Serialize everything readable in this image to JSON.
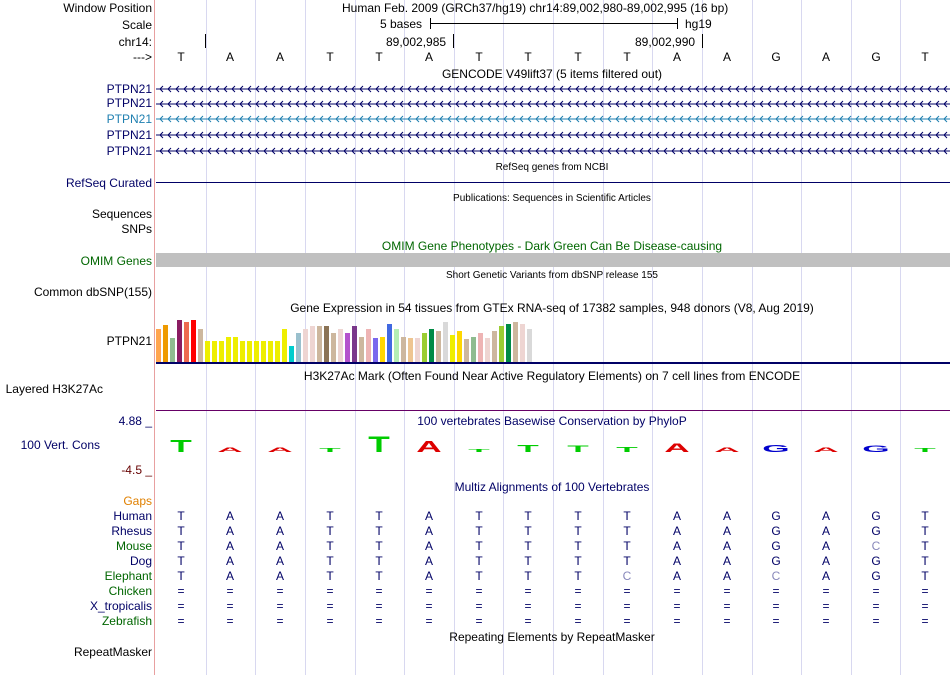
{
  "labels": {
    "window_position": "Window Position",
    "scale": "Scale",
    "chrom": "chr14:",
    "strand": "--->",
    "gencode_genes": [
      "PTPN21",
      "PTPN21",
      "PTPN21",
      "PTPN21",
      "PTPN21"
    ],
    "refseq": "RefSeq Curated",
    "sequences": "Sequences",
    "snps": "SNPs",
    "omim": "OMIM Genes",
    "dbsnp": "Common dbSNP(155)",
    "gtex": "PTPN21",
    "h3k27ac": "Layered H3K27Ac",
    "cons_max": "4.88 _",
    "cons": "100 Vert. Cons",
    "cons_min": "-4.5 _",
    "gaps": "Gaps",
    "species": [
      "Human",
      "Rhesus",
      "Mouse",
      "Dog",
      "Elephant",
      "Chicken",
      "X_tropicalis",
      "Zebrafish"
    ],
    "repeatmasker": "RepeatMasker"
  },
  "header": {
    "position": "Human Feb. 2009 (GRCh37/hg19)   chr14:89,002,980-89,002,995 (16 bp)",
    "scale_text": "5 bases",
    "assembly": "hg19",
    "coord1": "89,002,985",
    "coord2": "89,002,990"
  },
  "sequence": [
    "T",
    "A",
    "A",
    "T",
    "T",
    "A",
    "T",
    "T",
    "T",
    "T",
    "A",
    "A",
    "G",
    "A",
    "G",
    "T"
  ],
  "tracks": {
    "gencode": "GENCODE V49lift37 (5 items filtered out)",
    "refseq": "RefSeq genes from NCBI",
    "publications": "Publications: Sequences in Scientific Articles",
    "omim": "OMIM Gene Phenotypes - Dark Green Can Be Disease-causing",
    "dbsnp": "Short Genetic Variants from dbSNP release 155",
    "gtex": "Gene Expression in 54 tissues from GTEx RNA-seq of 17382 samples, 948 donors (V8, Aug 2019)",
    "h3k27ac": "H3K27Ac Mark (Often Found Near Active Regulatory Elements) on 7 cell lines from ENCODE",
    "phylop": "100 vertebrates Basewise Conservation by PhyloP",
    "multiz": "Multiz Alignments of 100 Vertebrates",
    "repeatmasker": "Repeating Elements by RepeatMasker"
  },
  "alignments": [
    [
      "T",
      "A",
      "A",
      "T",
      "T",
      "A",
      "T",
      "T",
      "T",
      "T",
      "A",
      "A",
      "G",
      "A",
      "G",
      "T"
    ],
    [
      "T",
      "A",
      "A",
      "T",
      "T",
      "A",
      "T",
      "T",
      "T",
      "T",
      "A",
      "A",
      "G",
      "A",
      "G",
      "T"
    ],
    [
      "T",
      "A",
      "A",
      "T",
      "T",
      "A",
      "T",
      "T",
      "T",
      "T",
      "A",
      "A",
      "G",
      "A",
      "C",
      "T"
    ],
    [
      "T",
      "A",
      "A",
      "T",
      "T",
      "A",
      "T",
      "T",
      "T",
      "T",
      "A",
      "A",
      "G",
      "A",
      "G",
      "T"
    ],
    [
      "T",
      "A",
      "A",
      "T",
      "T",
      "A",
      "T",
      "T",
      "T",
      "C",
      "A",
      "A",
      "C",
      "A",
      "G",
      "T"
    ],
    [
      "=",
      "=",
      "=",
      "=",
      "=",
      "=",
      "=",
      "=",
      "=",
      "=",
      "=",
      "=",
      "=",
      "=",
      "=",
      "="
    ],
    [
      "=",
      "=",
      "=",
      "=",
      "=",
      "=",
      "=",
      "=",
      "=",
      "=",
      "=",
      "=",
      "=",
      "=",
      "=",
      "="
    ],
    [
      "=",
      "=",
      "=",
      "=",
      "=",
      "=",
      "=",
      "=",
      "=",
      "=",
      "=",
      "=",
      "=",
      "=",
      "=",
      "="
    ]
  ],
  "gtex_values": [
    0.72,
    0.8,
    0.52,
    0.92,
    0.88,
    0.92,
    0.72,
    0.45,
    0.45,
    0.45,
    0.55,
    0.55,
    0.45,
    0.45,
    0.45,
    0.45,
    0.45,
    0.45,
    0.72,
    0.35,
    0.62,
    0.72,
    0.78,
    0.78,
    0.78,
    0.62,
    0.72,
    0.62,
    0.78,
    0.55,
    0.72,
    0.52,
    0.55,
    0.82,
    0.72,
    0.55,
    0.52,
    0.52,
    0.62,
    0.72,
    0.68,
    0.88,
    0.58,
    0.68,
    0.5,
    0.55,
    0.62,
    0.52,
    0.68,
    0.78,
    0.82,
    0.88,
    0.82,
    0.72
  ],
  "gtex_colors": [
    "#FFA54F",
    "#EE9A00",
    "#8FBC8F",
    "#8B1C62",
    "#EE6A50",
    "#FF0000",
    "#CDB79E",
    "#EEEE00",
    "#EEEE00",
    "#EEEE00",
    "#EEEE00",
    "#EEEE00",
    "#EEEE00",
    "#EEEE00",
    "#EEEE00",
    "#EEEE00",
    "#EEEE00",
    "#EEEE00",
    "#EEEE00",
    "#00CDCD",
    "#9AC0CD",
    "#EED5D2",
    "#EED5D2",
    "#CDB79E",
    "#8B7355",
    "#CDB79E",
    "#EED5D2",
    "#B452CD",
    "#7A378B",
    "#CDB79E",
    "#EEB4B4",
    "#7A67EE",
    "#FFD700",
    "#4169E1",
    "#B4EEB4",
    "#CDB79E",
    "#EEC591",
    "#EED5D2",
    "#9ACD32",
    "#008B45",
    "#CDB79E",
    "#D9D9D9",
    "#EEEE00",
    "#FFD700",
    "#CDB79E",
    "#8FBC8F",
    "#EEB4B4",
    "#EED5D2",
    "#CDB79E",
    "#9ACD32",
    "#008B45",
    "#CDB79E",
    "#EED5D2",
    "#D9D9D9"
  ],
  "phylop_colors": {
    "A": "#dd0000",
    "C": "#0000cc",
    "G": "#0000cc",
    "T": "#00cc00"
  },
  "phylop_heights": [
    0.8,
    0.3,
    0.3,
    0.25,
    1.0,
    0.7,
    0.2,
    0.45,
    0.4,
    0.35,
    0.55,
    0.3,
    0.45,
    0.3,
    0.4,
    0.25
  ],
  "colors": {
    "navy": "#000066",
    "omim": "#006600",
    "gaps": "#E08000",
    "cons_max": "#000066",
    "cons_min": "#660000"
  }
}
